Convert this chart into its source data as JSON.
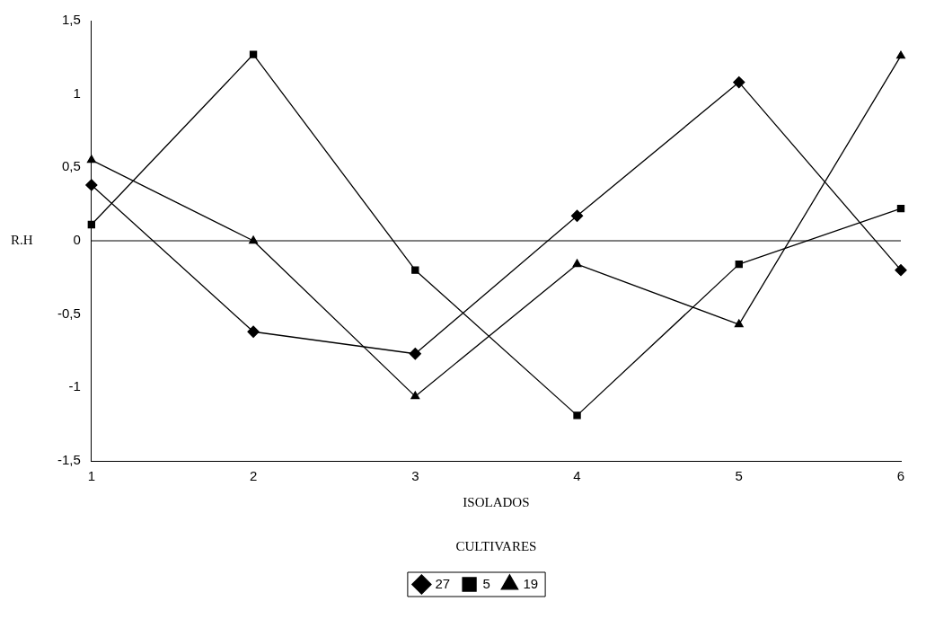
{
  "chart_data": {
    "type": "line",
    "xlabel": "ISOLADOS",
    "ylabel": "R.H",
    "annotations": [
      "CULTIVARES"
    ],
    "categories": [
      "1",
      "2",
      "3",
      "4",
      "5",
      "6"
    ],
    "series": [
      {
        "name": "27",
        "color": "#000000",
        "marker": "diamond",
        "values": [
          0.38,
          -0.62,
          -0.77,
          0.17,
          1.08,
          -0.2
        ]
      },
      {
        "name": "5",
        "color": "#000000",
        "marker": "square",
        "values": [
          0.11,
          1.27,
          -0.2,
          -1.19,
          -0.16,
          0.22
        ]
      },
      {
        "name": "19",
        "color": "#000000",
        "marker": "triangle",
        "values": [
          0.55,
          0,
          -1.06,
          -0.16,
          -0.57,
          1.26
        ]
      }
    ],
    "ylim": [
      -1.5,
      1.5
    ],
    "yticks": [
      {
        "value": -1.5,
        "label": "-1,5"
      },
      -1,
      {
        "value": -0.5,
        "label": "-0,5"
      },
      0,
      {
        "value": 0.5,
        "label": "0,5"
      },
      1,
      {
        "value": 1.5,
        "label": "1,5"
      }
    ],
    "ref_lines": [
      {
        "axis": "y",
        "value": 0
      }
    ],
    "grid": false,
    "legend": "bottom",
    "line_style": "solid"
  }
}
